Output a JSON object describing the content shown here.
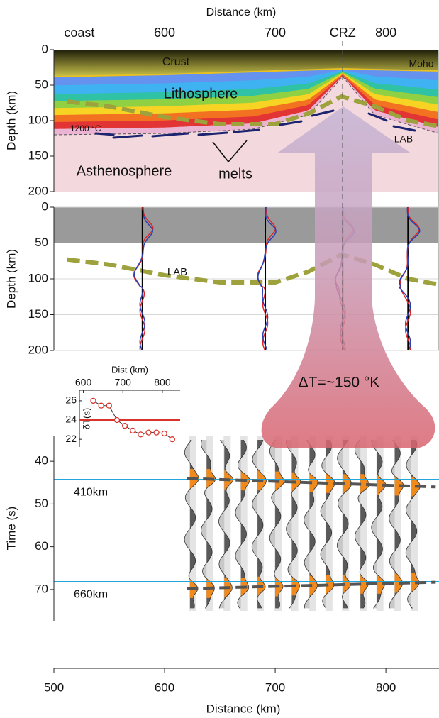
{
  "chart_data": [
    {
      "type": "section",
      "xlabel": "Distance (km)",
      "xlim": [
        500,
        848
      ],
      "xticks": [
        {
          "value": 523,
          "label": "coast"
        },
        600,
        700,
        {
          "value": 761,
          "label": "CRZ"
        },
        800
      ],
      "ylabel": "Depth (km)",
      "ylim": [
        0,
        200
      ],
      "yticks": [
        0,
        50,
        100,
        150,
        200
      ],
      "annotations": {
        "crust": "Crust",
        "moho": "Moho",
        "lithosphere": "Lithosphere",
        "isotherm": "1200 °C",
        "lab": "LAB",
        "asthenosphere": "Asthenosphere",
        "melts": "melts"
      },
      "moho": {
        "x": [
          500,
          600,
          700,
          760,
          848
        ],
        "values": [
          38,
          35,
          30,
          27,
          30
        ],
        "color": "#e8c020"
      },
      "isotherm": {
        "x": [
          500,
          600,
          680,
          730,
          761,
          790,
          848
        ],
        "values": [
          120,
          118,
          112,
          92,
          38,
          92,
          118
        ]
      },
      "lab": {
        "x": [
          512,
          550,
          600,
          650,
          700,
          730,
          760,
          790,
          820,
          848
        ],
        "values": [
          73,
          80,
          95,
          105,
          105,
          90,
          66,
          80,
          100,
          108
        ],
        "color": "#9da23c"
      }
    },
    {
      "type": "receiver-functions",
      "ylabel": "Depth (km)",
      "ylim": [
        0,
        200
      ],
      "yticks": [
        0,
        50,
        100,
        150,
        200
      ],
      "crust_depth": 50,
      "stations": [
        580,
        691,
        761,
        820
      ],
      "lab_label": "LAB",
      "annotation": "ΔT=~150 °K"
    },
    {
      "type": "scatter",
      "xlabel": "Dist (km)",
      "xlim": [
        590,
        845
      ],
      "xticks": [
        600,
        700,
        800
      ],
      "ylabel": "δT(s)",
      "ylim": [
        21.2,
        27.1
      ],
      "yticks": [
        22,
        24,
        26
      ],
      "x": [
        625,
        645,
        665,
        685,
        705,
        725,
        745,
        765,
        785,
        805,
        825
      ],
      "values": [
        26.0,
        25.5,
        25.5,
        24.0,
        23.4,
        22.9,
        22.5,
        22.7,
        22.7,
        22.6,
        22.0
      ],
      "mean": 24,
      "color": "#d9342b"
    },
    {
      "type": "waveforms",
      "ylabel": "Time (s)",
      "ylim": [
        34,
        75
      ],
      "yticks": [
        40,
        50,
        60,
        70
      ],
      "xlabel": "Distance (km)",
      "xlim": [
        500,
        848
      ],
      "xticks": [
        500,
        600,
        700,
        800
      ],
      "discontinuities": [
        {
          "label": "410km",
          "value": 44.3
        },
        {
          "label": "660km",
          "value": 68.2
        }
      ],
      "picks": [
        {
          "x": [
            620,
            845
          ],
          "values": [
            44.0,
            46.0
          ]
        },
        {
          "x": [
            620,
            845
          ],
          "values": [
            69.8,
            68.3
          ]
        }
      ],
      "trace_x": [
        623,
        638,
        654,
        669,
        684,
        700,
        715,
        731,
        746,
        761,
        777,
        792,
        808,
        823
      ]
    }
  ]
}
